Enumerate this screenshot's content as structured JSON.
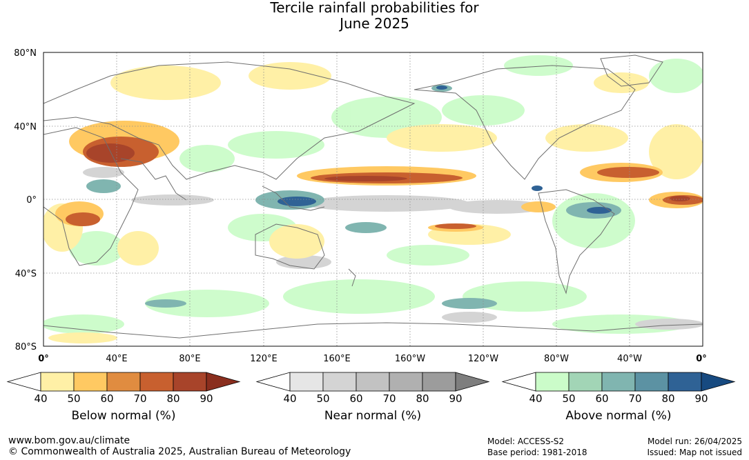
{
  "title": {
    "line1": "Tercile rainfall probabilities for",
    "line2": "June 2025"
  },
  "map": {
    "lat_labels": [
      "80°N",
      "40°N",
      "0°",
      "40°S",
      "80°S"
    ],
    "lon_labels": [
      "0°",
      "40°E",
      "80°E",
      "120°E",
      "160°E",
      "160°W",
      "120°W",
      "80°W",
      "40°W",
      "0°"
    ],
    "land_color": "#ffffff",
    "coast_color": "#6e6e6e",
    "grid_color": "#8c8c8c"
  },
  "legends": [
    {
      "name": "below-normal",
      "label": "Below normal (%)",
      "ticks": [
        "40",
        "50",
        "60",
        "70",
        "80",
        "90"
      ],
      "colors": [
        "#fff0a6",
        "#ffc962",
        "#e08c40",
        "#c8602f",
        "#a8442a",
        "#8a2e1e"
      ]
    },
    {
      "name": "near-normal",
      "label": "Near normal (%)",
      "ticks": [
        "40",
        "50",
        "60",
        "70",
        "80",
        "90"
      ],
      "colors": [
        "#e6e6e6",
        "#d4d4d4",
        "#c2c2c2",
        "#b0b0b0",
        "#9c9c9c",
        "#7e7e7e"
      ]
    },
    {
      "name": "above-normal",
      "label": "Above normal (%)",
      "ticks": [
        "40",
        "50",
        "60",
        "70",
        "80",
        "90"
      ],
      "colors": [
        "#cbfcc9",
        "#a2d5b6",
        "#80b5b0",
        "#5c92a3",
        "#2f6295",
        "#174a80"
      ]
    }
  ],
  "footer": {
    "url": "www.bom.gov.au/climate",
    "copyright": "© Commonwealth of Australia 2025, Australian Bureau of Meteorology",
    "model": "Model: ACCESS-S2",
    "base_period": "Base period: 1981-2018",
    "model_run": "Model run: 26/04/2025",
    "issued": "Issued: Map not issued"
  }
}
